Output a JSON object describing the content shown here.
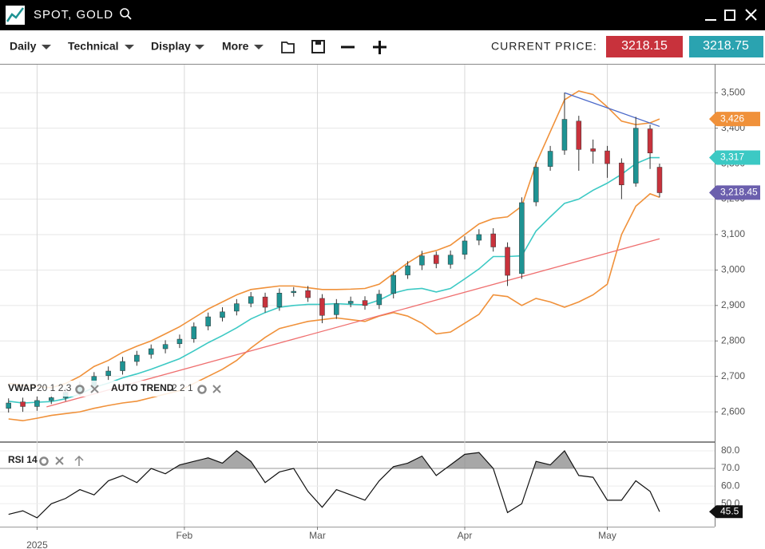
{
  "header": {
    "title": "SPOT, GOLD"
  },
  "toolbar": {
    "menus": [
      "Daily",
      "Technical",
      "Display",
      "More"
    ],
    "current_price_label": "CURRENT PRICE:",
    "bid": 3218.15,
    "ask": 3218.75
  },
  "chart_data": [
    {
      "type": "candlestick",
      "indicators": [
        {
          "name": "VWAP",
          "params": "20 1 2.3"
        },
        {
          "name": "AUTO TREND",
          "params": "2 2 1"
        }
      ],
      "up_color": "#1e9393",
      "down_color": "#c8323c",
      "x": [
        -6,
        -3,
        0,
        3,
        6,
        9,
        12,
        15,
        18,
        21,
        24,
        27,
        30,
        33,
        36,
        39,
        42,
        45,
        48,
        51,
        54,
        57,
        60,
        63,
        66,
        69,
        72,
        75,
        78,
        81,
        84,
        87,
        90,
        93,
        96,
        99,
        102,
        105,
        108,
        111,
        114,
        117,
        120,
        123,
        126,
        129,
        131
      ],
      "open": [
        2610,
        2628,
        2615,
        2632,
        2640,
        2656,
        2672,
        2702,
        2716,
        2742,
        2762,
        2778,
        2792,
        2806,
        2842,
        2866,
        2884,
        2906,
        2924,
        2896,
        2936,
        2942,
        2920,
        2874,
        2906,
        2914,
        2902,
        2934,
        2986,
        3014,
        3042,
        3016,
        3044,
        3084,
        3102,
        3064,
        2990,
        3192,
        3292,
        3338,
        3420,
        3342,
        3336,
        3302,
        3245,
        3398,
        3290
      ],
      "high": [
        2638,
        2640,
        2645,
        2652,
        2668,
        2685,
        2712,
        2728,
        2755,
        2772,
        2790,
        2802,
        2818,
        2852,
        2880,
        2895,
        2918,
        2938,
        2936,
        2948,
        2952,
        2955,
        2932,
        2918,
        2925,
        2926,
        2944,
        2996,
        3025,
        3054,
        3052,
        3055,
        3095,
        3115,
        3118,
        3078,
        3205,
        3305,
        3350,
        3500,
        3435,
        3368,
        3350,
        3315,
        3432,
        3410,
        3300
      ],
      "low": [
        2598,
        2600,
        2603,
        2622,
        2630,
        2645,
        2660,
        2690,
        2705,
        2730,
        2750,
        2765,
        2780,
        2795,
        2830,
        2855,
        2872,
        2895,
        2880,
        2885,
        2925,
        2910,
        2850,
        2862,
        2895,
        2888,
        2890,
        2920,
        2975,
        3000,
        3005,
        3004,
        3030,
        3070,
        3052,
        2955,
        2975,
        3180,
        3280,
        3325,
        3280,
        3300,
        3260,
        3200,
        3235,
        3285,
        3205
      ],
      "close": [
        2625,
        2615,
        2632,
        2640,
        2655,
        2672,
        2700,
        2715,
        2742,
        2760,
        2778,
        2790,
        2805,
        2840,
        2868,
        2882,
        2905,
        2925,
        2895,
        2935,
        2940,
        2922,
        2872,
        2905,
        2912,
        2900,
        2932,
        2985,
        3012,
        3040,
        3018,
        3042,
        3082,
        3100,
        3065,
        2985,
        3190,
        3290,
        3335,
        3425,
        3340,
        3335,
        3300,
        3240,
        3400,
        3330,
        3218
      ],
      "overlays": [
        {
          "color": "#f0913a",
          "values": [
            2680,
            2675,
            2672,
            2668,
            2680,
            2700,
            2728,
            2745,
            2768,
            2785,
            2800,
            2820,
            2840,
            2865,
            2890,
            2910,
            2930,
            2945,
            2950,
            2955,
            2955,
            2950,
            2945,
            2945,
            2946,
            2948,
            2960,
            2990,
            3020,
            3045,
            3055,
            3070,
            3100,
            3130,
            3145,
            3150,
            3180,
            3300,
            3390,
            3480,
            3505,
            3495,
            3460,
            3420,
            3410,
            3415,
            3426
          ]
        },
        {
          "color": "#f0913a",
          "values": [
            2580,
            2575,
            2582,
            2590,
            2595,
            2600,
            2610,
            2618,
            2625,
            2630,
            2640,
            2650,
            2660,
            2680,
            2700,
            2720,
            2745,
            2780,
            2810,
            2835,
            2845,
            2855,
            2860,
            2865,
            2860,
            2855,
            2870,
            2880,
            2870,
            2850,
            2820,
            2825,
            2850,
            2875,
            2930,
            2925,
            2900,
            2920,
            2910,
            2895,
            2910,
            2930,
            2960,
            3100,
            3180,
            3215,
            3205
          ]
        },
        {
          "color": "#3cc9c4",
          "values": [
            2630,
            2625,
            2627,
            2629,
            2637,
            2650,
            2669,
            2681,
            2696,
            2707,
            2720,
            2735,
            2750,
            2772,
            2795,
            2815,
            2837,
            2862,
            2880,
            2895,
            2900,
            2903,
            2903,
            2905,
            2903,
            2902,
            2915,
            2935,
            2945,
            2948,
            2938,
            2948,
            2975,
            3003,
            3038,
            3038,
            3040,
            3110,
            3150,
            3188,
            3200,
            3225,
            3245,
            3270,
            3300,
            3317,
            3317
          ]
        }
      ],
      "trendlines": [
        {
          "color": "#ef6f6f",
          "x": [
            2,
            131
          ],
          "values": [
            2614,
            3088
          ]
        },
        {
          "color": "#4a68c9",
          "x": [
            111,
            131
          ],
          "values": [
            3500,
            3405
          ]
        }
      ],
      "price_labels": [
        {
          "value": 3426,
          "label": "3,426",
          "color": "#f0913a"
        },
        {
          "value": 3317,
          "label": "3,317",
          "color": "#3cc9c4"
        },
        {
          "value": 3218.45,
          "label": "3,218.45",
          "color": "#6b5fad"
        }
      ],
      "xlim": [
        -7.8,
        142.6
      ],
      "xticks": [
        {
          "value": 0,
          "label": "2025"
        },
        {
          "value": 31,
          "label": "Feb"
        },
        {
          "value": 59,
          "label": "Mar"
        },
        {
          "value": 90,
          "label": "Apr"
        },
        {
          "value": 120,
          "label": "May"
        }
      ],
      "ylim": [
        2517,
        3577
      ],
      "yticks": [
        {
          "value": 2600,
          "label": "2,600"
        },
        {
          "value": 2700,
          "label": "2,700"
        },
        {
          "value": 2800,
          "label": "2,800"
        },
        {
          "value": 2900,
          "label": "2,900"
        },
        {
          "value": 3000,
          "label": "3,000"
        },
        {
          "value": 3100,
          "label": "3,100"
        },
        {
          "value": 3200,
          "label": "3,200"
        },
        {
          "value": 3300,
          "label": "3,300"
        },
        {
          "value": 3400,
          "label": "3,400"
        },
        {
          "value": 3500,
          "label": "3,500"
        }
      ],
      "grid": true
    },
    {
      "type": "line",
      "title": "RSI 14",
      "color": "#111111",
      "x": [
        -6,
        -3,
        0,
        3,
        6,
        9,
        12,
        15,
        18,
        21,
        24,
        27,
        30,
        33,
        36,
        39,
        42,
        45,
        48,
        51,
        54,
        57,
        60,
        63,
        66,
        69,
        72,
        75,
        78,
        81,
        84,
        87,
        90,
        93,
        96,
        99,
        102,
        105,
        108,
        111,
        114,
        117,
        120,
        123,
        126,
        129,
        131
      ],
      "values": [
        44,
        46,
        42,
        50,
        53,
        58,
        55,
        63,
        66,
        62,
        70,
        67,
        72,
        74,
        76,
        73,
        80,
        74,
        62,
        68,
        70,
        57,
        48,
        58,
        55,
        52,
        63,
        71,
        73,
        77,
        66,
        72,
        78,
        79,
        70,
        45,
        50,
        74,
        72,
        80,
        66,
        65,
        52,
        52,
        63,
        57,
        45.5
      ],
      "last_label": {
        "value": 45.5,
        "label": "45.5"
      },
      "overbought": 70,
      "xlim": [
        -7.8,
        142.6
      ],
      "ylim": [
        37,
        84.5
      ],
      "yticks": [
        {
          "value": 50,
          "label": "50.0"
        },
        {
          "value": 60,
          "label": "60.0"
        },
        {
          "value": 70,
          "label": "70.0"
        },
        {
          "value": 80,
          "label": "80.0"
        }
      ]
    }
  ]
}
